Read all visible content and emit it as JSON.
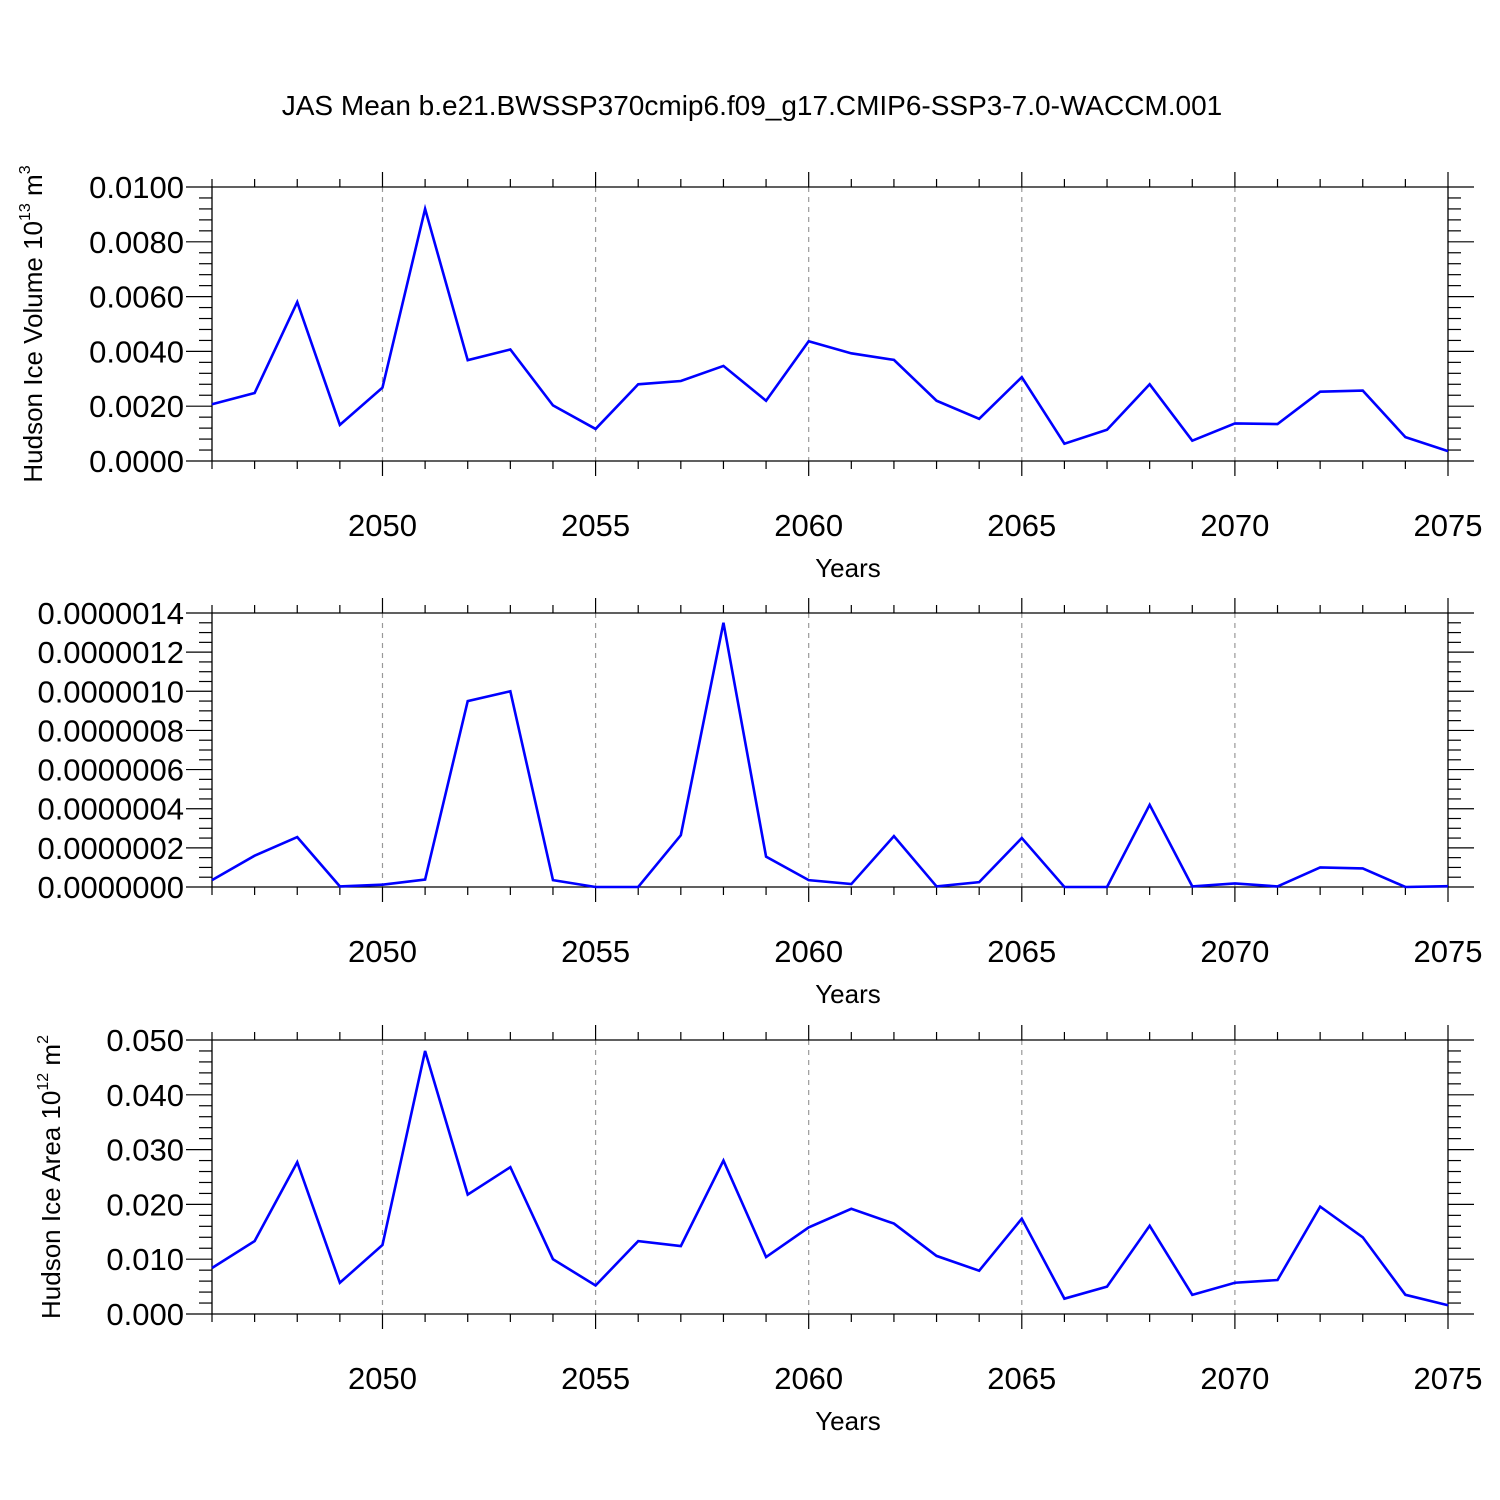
{
  "figure_title": "JAS Mean b.e21.BWSSP370cmip6.f09_g17.CMIP6-SSP3-7.0-WACCM.001",
  "colors": {
    "series": "#0000ff",
    "axis": "#000000",
    "grid": "#999999"
  },
  "chart_data": [
    {
      "type": "line",
      "xlabel": "Years",
      "ylabel": {
        "text": "Hudson Ice Volume 10",
        "exp": "13",
        "unit": " m",
        "unit_exp": "3"
      },
      "xlim": [
        2046,
        2075
      ],
      "ylim": [
        0,
        0.01
      ],
      "x_ticks": [
        2050,
        2055,
        2060,
        2065,
        2070,
        2075
      ],
      "x_tick_labels": [
        "2050",
        "2055",
        "2060",
        "2065",
        "2070",
        "2075"
      ],
      "y_ticks": [
        0,
        0.002,
        0.004,
        0.006,
        0.008,
        0.01
      ],
      "y_tick_labels": [
        "0.0000",
        "0.0020",
        "0.0040",
        "0.0060",
        "0.0080",
        "0.0100"
      ],
      "grid": "vertical dashed at major x ticks",
      "x": [
        2046,
        2047,
        2048,
        2049,
        2050,
        2051,
        2052,
        2053,
        2054,
        2055,
        2056,
        2057,
        2058,
        2059,
        2060,
        2061,
        2062,
        2063,
        2064,
        2065,
        2066,
        2067,
        2068,
        2069,
        2070,
        2071,
        2072,
        2073,
        2074,
        2075
      ],
      "values": [
        0.00207,
        0.00248,
        0.0058,
        0.00132,
        0.00268,
        0.0092,
        0.00368,
        0.00407,
        0.00203,
        0.00117,
        0.0028,
        0.00292,
        0.00347,
        0.0022,
        0.00437,
        0.00393,
        0.00369,
        0.0022,
        0.00154,
        0.00306,
        0.00063,
        0.00114,
        0.0028,
        0.00074,
        0.00137,
        0.00135,
        0.00253,
        0.00257,
        0.00087,
        0.00036
      ]
    },
    {
      "type": "line",
      "xlabel": "Years",
      "ylabel": null,
      "xlim": [
        2046,
        2075
      ],
      "ylim": [
        0,
        1.4e-06
      ],
      "x_ticks": [
        2050,
        2055,
        2060,
        2065,
        2070,
        2075
      ],
      "x_tick_labels": [
        "2050",
        "2055",
        "2060",
        "2065",
        "2070",
        "2075"
      ],
      "y_ticks": [
        0,
        2e-07,
        4e-07,
        6e-07,
        8e-07,
        1e-06,
        1.2e-06,
        1.4e-06
      ],
      "y_tick_labels": [
        "0.0000000",
        "0.0000002",
        "0.0000004",
        "0.0000006",
        "0.0000008",
        "0.0000010",
        "0.0000012",
        "0.0000014"
      ],
      "grid": "vertical dashed at major x ticks",
      "x": [
        2046,
        2047,
        2048,
        2049,
        2050,
        2051,
        2052,
        2053,
        2054,
        2055,
        2056,
        2057,
        2058,
        2059,
        2060,
        2061,
        2062,
        2063,
        2064,
        2065,
        2066,
        2067,
        2068,
        2069,
        2070,
        2071,
        2072,
        2073,
        2074,
        2075
      ],
      "values": [
        3.5e-08,
        1.6e-07,
        2.55e-07,
        3e-09,
        1.2e-08,
        3.8e-08,
        9.5e-07,
        1e-06,
        3.5e-08,
        0,
        0,
        2.65e-07,
        1.35e-06,
        1.55e-07,
        3.5e-08,
        1.5e-08,
        2.6e-07,
        3e-09,
        2.5e-08,
        2.5e-07,
        0,
        0,
        4.2e-07,
        3e-09,
        1.8e-08,
        3e-09,
        1e-07,
        9.5e-08,
        0,
        4e-09
      ]
    },
    {
      "type": "line",
      "xlabel": "Years",
      "ylabel": {
        "text": "Hudson Ice Area 10",
        "exp": "12",
        "unit": " m",
        "unit_exp": "2"
      },
      "xlim": [
        2046,
        2075
      ],
      "ylim": [
        0,
        0.05
      ],
      "x_ticks": [
        2050,
        2055,
        2060,
        2065,
        2070,
        2075
      ],
      "x_tick_labels": [
        "2050",
        "2055",
        "2060",
        "2065",
        "2070",
        "2075"
      ],
      "y_ticks": [
        0,
        0.01,
        0.02,
        0.03,
        0.04,
        0.05
      ],
      "y_tick_labels": [
        "0.000",
        "0.010",
        "0.020",
        "0.030",
        "0.040",
        "0.050"
      ],
      "grid": "vertical dashed at major x ticks",
      "x": [
        2046,
        2047,
        2048,
        2049,
        2050,
        2051,
        2052,
        2053,
        2054,
        2055,
        2056,
        2057,
        2058,
        2059,
        2060,
        2061,
        2062,
        2063,
        2064,
        2065,
        2066,
        2067,
        2068,
        2069,
        2070,
        2071,
        2072,
        2073,
        2074,
        2075
      ],
      "values": [
        0.0084,
        0.0133,
        0.0277,
        0.0057,
        0.0126,
        0.048,
        0.0218,
        0.0268,
        0.01,
        0.0052,
        0.0133,
        0.0124,
        0.028,
        0.0104,
        0.0158,
        0.0192,
        0.0165,
        0.0106,
        0.0079,
        0.0174,
        0.0028,
        0.005,
        0.0161,
        0.0035,
        0.0057,
        0.0062,
        0.0196,
        0.014,
        0.0035,
        0.0016
      ]
    }
  ]
}
